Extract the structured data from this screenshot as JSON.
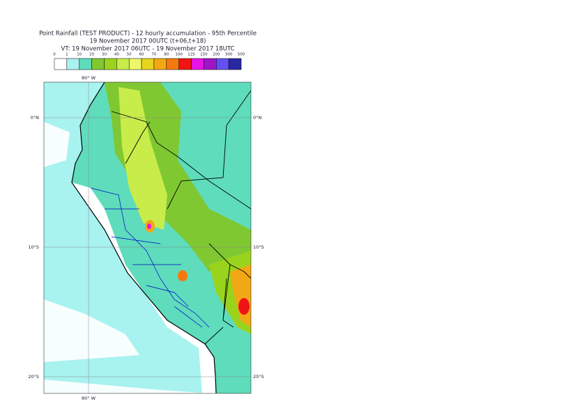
{
  "header": {
    "title": "Point Rainfall (TEST PRODUCT) - 12 hourly accumulation - 95th Percentile",
    "subtitle": "19 November 2017 00UTC (t+06,t+18)",
    "validity": "VT: 19 November 2017 06UTC - 19 November 2017 18UTC"
  },
  "legend": {
    "labels": [
      "0",
      "1",
      "10",
      "20",
      "30",
      "40",
      "50",
      "60",
      "70",
      "80",
      "100",
      "125",
      "150",
      "200",
      "300",
      "500"
    ],
    "colors": [
      "#ffffff",
      "#a8f2f0",
      "#5edcbc",
      "#7fc832",
      "#9ad31e",
      "#c8ec4a",
      "#eef66a",
      "#e6d41e",
      "#f2a814",
      "#f6780c",
      "#f01414",
      "#e614e6",
      "#a014c8",
      "#6450f0",
      "#2828a0",
      "#0a0a50"
    ]
  },
  "map": {
    "lon_top": "80° W",
    "lon_bottom": "80° W",
    "lat_left": [
      "0°N",
      "10°S",
      "20°S"
    ],
    "lat_right": [
      "0°N",
      "10°S",
      "20°S"
    ]
  }
}
